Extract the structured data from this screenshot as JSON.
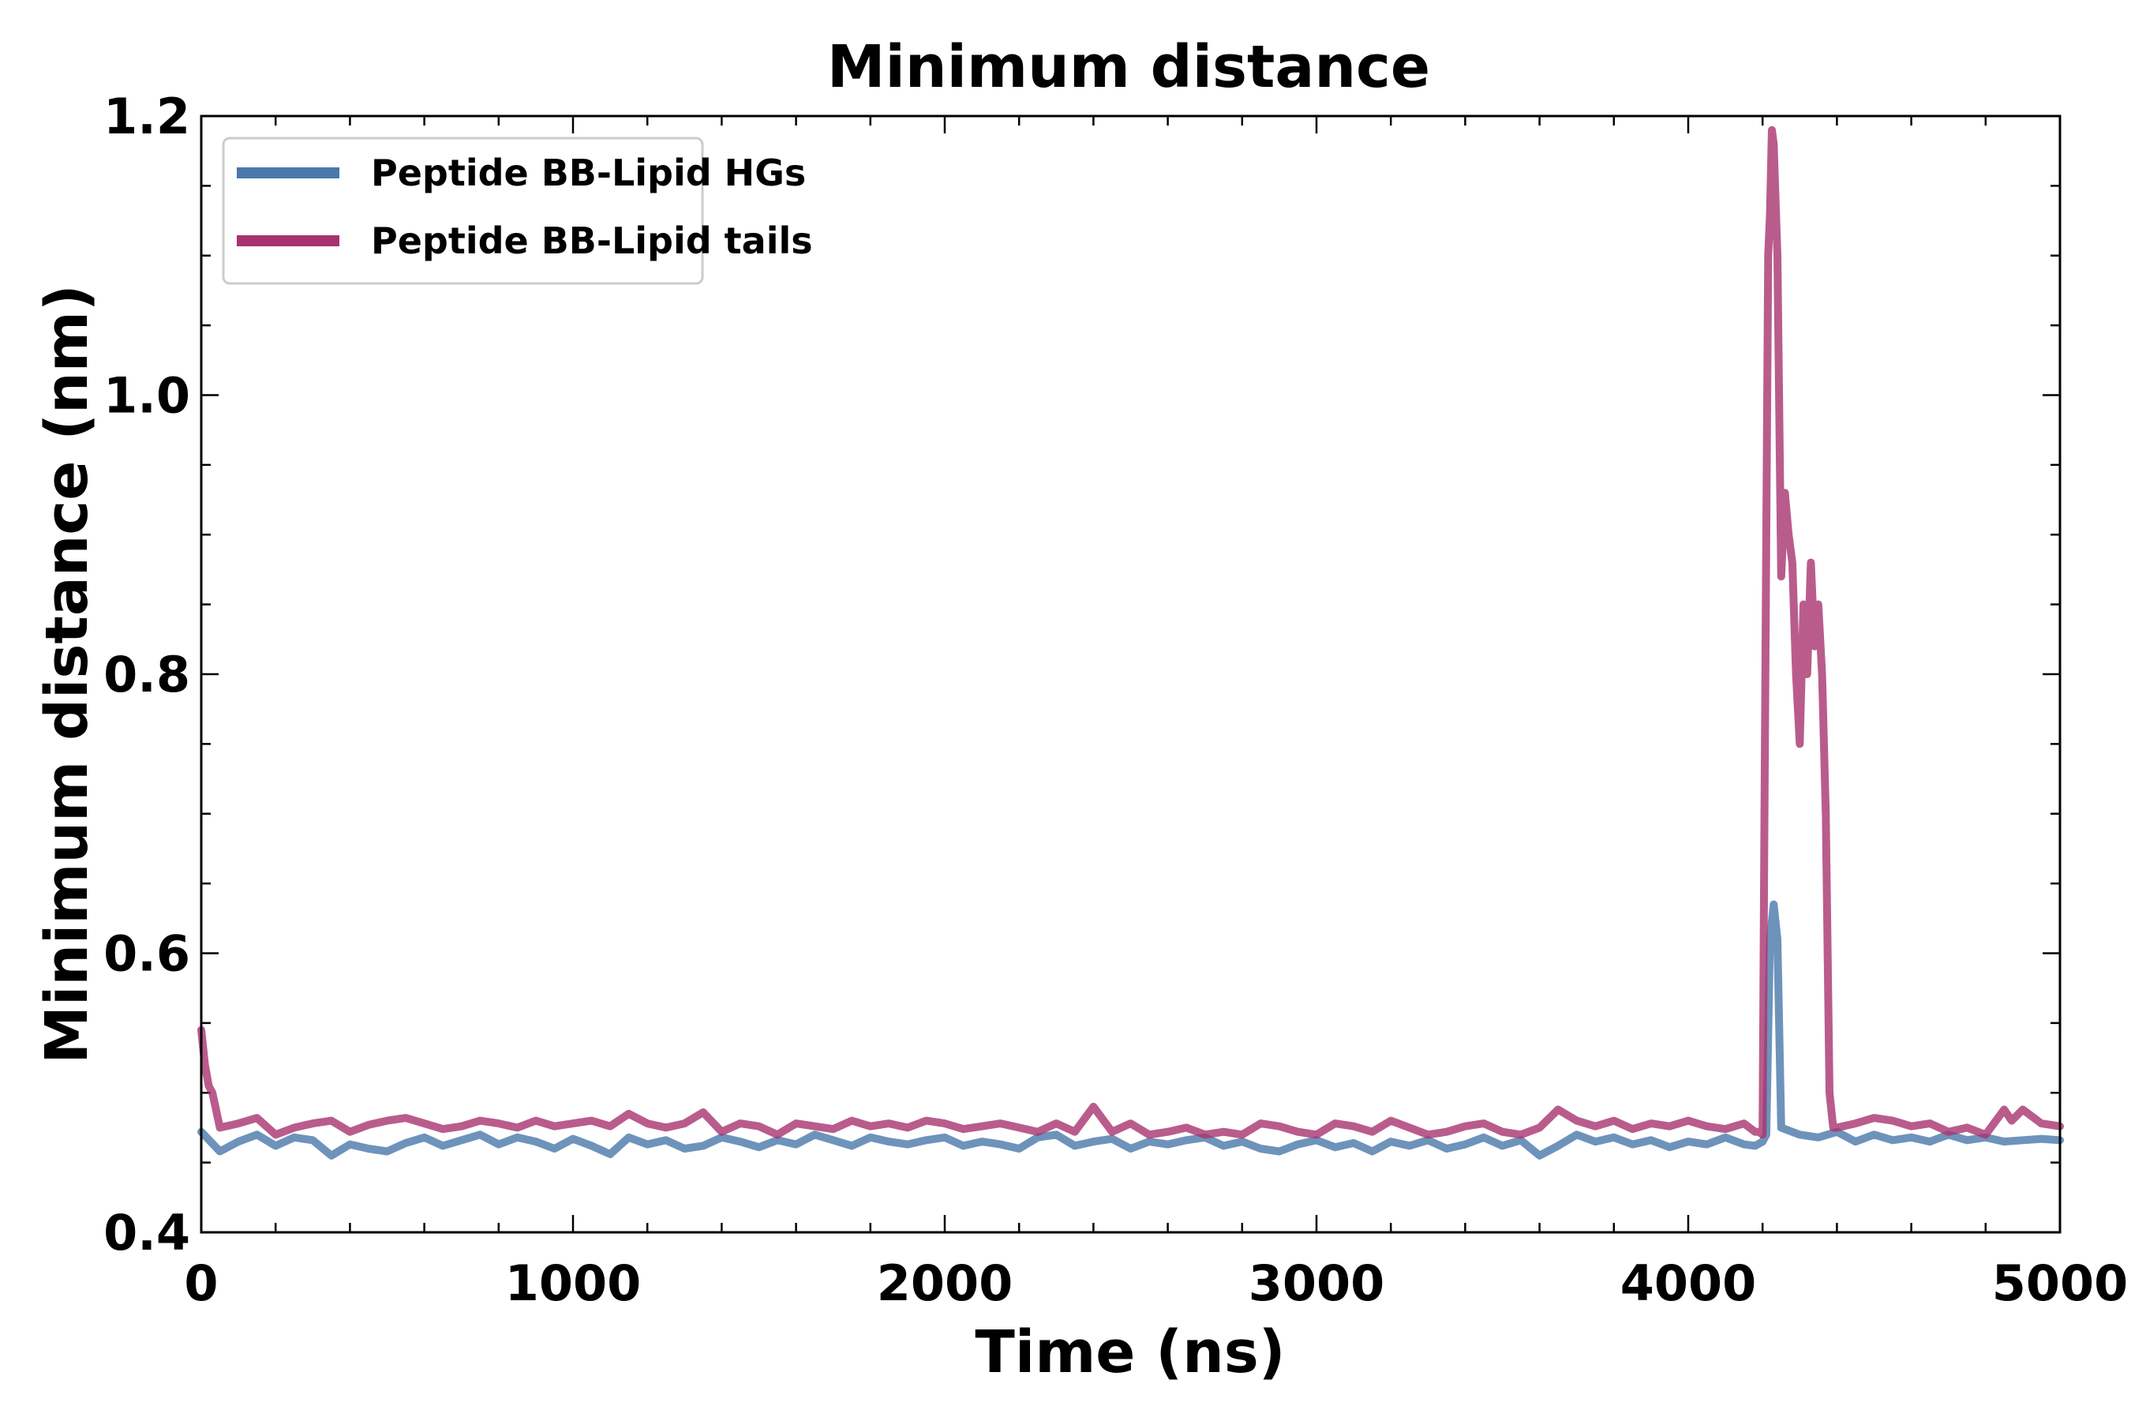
{
  "chart_data": {
    "type": "line",
    "title": "Minimum distance",
    "xlabel": "Time (ns)",
    "ylabel": "Minimum distance (nm)",
    "xlim": [
      0,
      5000
    ],
    "ylim": [
      0.4,
      1.2
    ],
    "xticks": [
      "0",
      "1000",
      "2000",
      "3000",
      "4000",
      "5000"
    ],
    "yticks": [
      "0.4",
      "0.6",
      "0.8",
      "1.0",
      "1.2"
    ],
    "grid": false,
    "legend_position": "top-left",
    "series": [
      {
        "name": "Peptide BB-Lipid HGs",
        "color": "#4a78aa",
        "x": [
          0,
          50,
          100,
          150,
          200,
          250,
          300,
          350,
          400,
          450,
          500,
          550,
          600,
          650,
          700,
          750,
          800,
          850,
          900,
          950,
          1000,
          1050,
          1100,
          1150,
          1200,
          1250,
          1300,
          1350,
          1400,
          1450,
          1500,
          1550,
          1600,
          1650,
          1700,
          1750,
          1800,
          1850,
          1900,
          1950,
          2000,
          2050,
          2100,
          2150,
          2200,
          2250,
          2300,
          2350,
          2400,
          2450,
          2500,
          2550,
          2600,
          2650,
          2700,
          2750,
          2800,
          2850,
          2900,
          2950,
          3000,
          3050,
          3100,
          3150,
          3200,
          3250,
          3300,
          3350,
          3400,
          3450,
          3500,
          3550,
          3600,
          3650,
          3700,
          3750,
          3800,
          3850,
          3900,
          3950,
          4000,
          4050,
          4100,
          4150,
          4180,
          4200,
          4210,
          4220,
          4230,
          4240,
          4250,
          4300,
          4350,
          4400,
          4450,
          4500,
          4550,
          4600,
          4650,
          4700,
          4750,
          4800,
          4850,
          4900,
          4950,
          5000
        ],
        "values": [
          0.472,
          0.458,
          0.465,
          0.47,
          0.462,
          0.468,
          0.466,
          0.455,
          0.463,
          0.46,
          0.458,
          0.464,
          0.468,
          0.462,
          0.466,
          0.47,
          0.463,
          0.468,
          0.465,
          0.46,
          0.467,
          0.462,
          0.456,
          0.468,
          0.463,
          0.466,
          0.46,
          0.462,
          0.468,
          0.465,
          0.461,
          0.466,
          0.463,
          0.47,
          0.466,
          0.462,
          0.468,
          0.465,
          0.463,
          0.466,
          0.468,
          0.462,
          0.465,
          0.463,
          0.46,
          0.468,
          0.47,
          0.462,
          0.465,
          0.467,
          0.46,
          0.465,
          0.463,
          0.466,
          0.468,
          0.462,
          0.465,
          0.46,
          0.458,
          0.463,
          0.466,
          0.461,
          0.464,
          0.458,
          0.465,
          0.462,
          0.466,
          0.46,
          0.463,
          0.468,
          0.462,
          0.466,
          0.455,
          0.462,
          0.47,
          0.465,
          0.468,
          0.463,
          0.466,
          0.461,
          0.465,
          0.463,
          0.468,
          0.463,
          0.462,
          0.465,
          0.47,
          0.61,
          0.635,
          0.61,
          0.475,
          0.47,
          0.468,
          0.472,
          0.465,
          0.47,
          0.466,
          0.468,
          0.465,
          0.47,
          0.466,
          0.468,
          0.465,
          0.466,
          0.467,
          0.466
        ]
      },
      {
        "name": "Peptide BB-Lipid tails",
        "color": "#a8336f",
        "x": [
          0,
          10,
          20,
          30,
          50,
          100,
          150,
          200,
          250,
          300,
          350,
          400,
          450,
          500,
          550,
          600,
          650,
          700,
          750,
          800,
          850,
          900,
          950,
          1000,
          1050,
          1100,
          1150,
          1200,
          1250,
          1300,
          1350,
          1400,
          1450,
          1500,
          1550,
          1600,
          1650,
          1700,
          1750,
          1800,
          1850,
          1900,
          1950,
          2000,
          2050,
          2100,
          2150,
          2200,
          2250,
          2300,
          2350,
          2400,
          2450,
          2500,
          2550,
          2600,
          2650,
          2700,
          2750,
          2800,
          2850,
          2900,
          2950,
          3000,
          3050,
          3100,
          3150,
          3200,
          3250,
          3300,
          3350,
          3400,
          3450,
          3500,
          3550,
          3600,
          3650,
          3700,
          3750,
          3800,
          3850,
          3900,
          3950,
          4000,
          4050,
          4100,
          4150,
          4180,
          4190,
          4200,
          4205,
          4210,
          4215,
          4220,
          4225,
          4230,
          4240,
          4250,
          4260,
          4270,
          4280,
          4290,
          4300,
          4310,
          4320,
          4330,
          4340,
          4350,
          4360,
          4370,
          4380,
          4390,
          4400,
          4450,
          4500,
          4550,
          4600,
          4650,
          4700,
          4750,
          4800,
          4850,
          4870,
          4900,
          4950,
          5000
        ],
        "values": [
          0.545,
          0.52,
          0.505,
          0.5,
          0.475,
          0.478,
          0.482,
          0.47,
          0.475,
          0.478,
          0.48,
          0.472,
          0.477,
          0.48,
          0.482,
          0.478,
          0.474,
          0.476,
          0.48,
          0.478,
          0.475,
          0.48,
          0.476,
          0.478,
          0.48,
          0.476,
          0.485,
          0.478,
          0.475,
          0.478,
          0.486,
          0.472,
          0.478,
          0.476,
          0.47,
          0.478,
          0.476,
          0.474,
          0.48,
          0.476,
          0.478,
          0.475,
          0.48,
          0.478,
          0.474,
          0.476,
          0.478,
          0.475,
          0.472,
          0.478,
          0.472,
          0.49,
          0.472,
          0.478,
          0.47,
          0.472,
          0.475,
          0.47,
          0.472,
          0.47,
          0.478,
          0.476,
          0.472,
          0.47,
          0.478,
          0.476,
          0.472,
          0.48,
          0.475,
          0.47,
          0.472,
          0.476,
          0.478,
          0.472,
          0.47,
          0.475,
          0.488,
          0.48,
          0.476,
          0.48,
          0.474,
          0.478,
          0.476,
          0.48,
          0.476,
          0.474,
          0.478,
          0.472,
          0.472,
          0.47,
          0.7,
          0.9,
          1.1,
          1.13,
          1.19,
          1.18,
          1.1,
          0.87,
          0.93,
          0.9,
          0.88,
          0.8,
          0.75,
          0.85,
          0.8,
          0.88,
          0.82,
          0.85,
          0.8,
          0.7,
          0.5,
          0.475,
          0.475,
          0.478,
          0.482,
          0.48,
          0.476,
          0.478,
          0.472,
          0.475,
          0.47,
          0.488,
          0.48,
          0.488,
          0.478,
          0.476
        ]
      }
    ]
  }
}
